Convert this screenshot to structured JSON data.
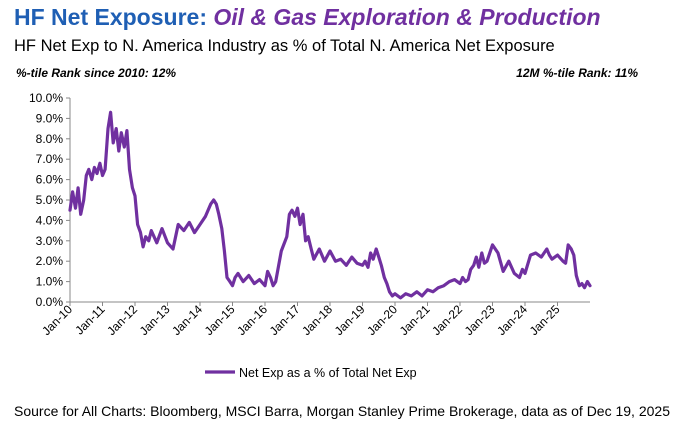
{
  "header": {
    "title_main": "HF Net Exposure: ",
    "title_sector": "Oil & Gas Exploration & Production",
    "subtitle": "HF Net Exp to N. America Industry as % of Total N. America Net Exposure",
    "stat_left": "%-tile Rank since 2010: 12%",
    "stat_right": "12M %-tile Rank: 11%"
  },
  "footer": {
    "source": "Source for All Charts: Bloomberg, MSCI Barra, Morgan Stanley Prime Brokerage, data as of Dec 19, 2025"
  },
  "colors": {
    "line": "#7030a0",
    "title_blue": "#1f5fb4",
    "title_purple": "#7030a0"
  },
  "chart_data": {
    "type": "line",
    "title": "HF Net Exp to N. America Industry as % of Total N. America Net Exposure",
    "xlabel": "",
    "ylabel": "",
    "ylim": [
      0,
      10
    ],
    "yticks": [
      "0.0%",
      "1.0%",
      "2.0%",
      "3.0%",
      "4.0%",
      "5.0%",
      "6.0%",
      "7.0%",
      "8.0%",
      "9.0%",
      "10.0%"
    ],
    "xlim": [
      2010.0,
      2026.0
    ],
    "xticks": [
      "Jan-10",
      "Jan-11",
      "Jan-12",
      "Jan-13",
      "Jan-14",
      "Jan-15",
      "Jan-16",
      "Jan-17",
      "Jan-18",
      "Jan-19",
      "Jan-20",
      "Jan-21",
      "Jan-22",
      "Jan-23",
      "Jan-24",
      "Jan-25"
    ],
    "legend": {
      "position": "bottom",
      "entries": [
        "Net Exp as a % of Total Net Exp"
      ]
    },
    "series": [
      {
        "name": "Net Exp as a % of Total Net Exp",
        "x": [
          2010.0,
          2010.08,
          2010.17,
          2010.25,
          2010.33,
          2010.42,
          2010.5,
          2010.58,
          2010.67,
          2010.75,
          2010.83,
          2010.92,
          2011.0,
          2011.08,
          2011.17,
          2011.25,
          2011.33,
          2011.42,
          2011.5,
          2011.58,
          2011.67,
          2011.75,
          2011.83,
          2011.92,
          2012.0,
          2012.08,
          2012.17,
          2012.25,
          2012.33,
          2012.42,
          2012.5,
          2012.67,
          2012.83,
          2013.0,
          2013.17,
          2013.33,
          2013.5,
          2013.67,
          2013.83,
          2014.0,
          2014.17,
          2014.33,
          2014.42,
          2014.5,
          2014.58,
          2014.67,
          2014.75,
          2014.83,
          2014.92,
          2015.0,
          2015.08,
          2015.17,
          2015.33,
          2015.5,
          2015.67,
          2015.83,
          2016.0,
          2016.08,
          2016.17,
          2016.25,
          2016.33,
          2016.5,
          2016.67,
          2016.75,
          2016.83,
          2016.92,
          2017.0,
          2017.08,
          2017.17,
          2017.25,
          2017.33,
          2017.42,
          2017.5,
          2017.67,
          2017.83,
          2018.0,
          2018.17,
          2018.33,
          2018.5,
          2018.67,
          2018.83,
          2019.0,
          2019.08,
          2019.17,
          2019.25,
          2019.33,
          2019.42,
          2019.5,
          2019.58,
          2019.67,
          2019.75,
          2019.83,
          2019.92,
          2020.0,
          2020.17,
          2020.33,
          2020.5,
          2020.67,
          2020.83,
          2021.0,
          2021.17,
          2021.33,
          2021.5,
          2021.67,
          2021.83,
          2022.0,
          2022.08,
          2022.17,
          2022.25,
          2022.33,
          2022.42,
          2022.5,
          2022.58,
          2022.67,
          2022.75,
          2022.83,
          2023.0,
          2023.17,
          2023.33,
          2023.5,
          2023.67,
          2023.83,
          2023.92,
          2024.0,
          2024.17,
          2024.33,
          2024.5,
          2024.67,
          2024.75,
          2024.83,
          2025.0,
          2025.17,
          2025.25,
          2025.33,
          2025.42,
          2025.5,
          2025.58,
          2025.67,
          2025.75,
          2025.83,
          2025.92,
          2026.0
        ],
        "values": [
          4.5,
          5.4,
          4.6,
          5.6,
          4.3,
          5.0,
          6.2,
          6.5,
          6.0,
          6.6,
          6.3,
          6.8,
          6.2,
          6.5,
          8.5,
          9.3,
          7.8,
          8.5,
          7.4,
          8.3,
          7.6,
          8.4,
          6.5,
          5.6,
          5.2,
          3.8,
          3.4,
          2.7,
          3.2,
          3.0,
          3.5,
          2.9,
          3.6,
          2.9,
          2.6,
          3.8,
          3.5,
          3.9,
          3.4,
          3.8,
          4.2,
          4.8,
          5.0,
          4.8,
          4.3,
          3.6,
          2.5,
          1.2,
          1.0,
          0.8,
          1.2,
          1.4,
          1.0,
          1.3,
          0.9,
          1.1,
          0.8,
          1.5,
          1.2,
          0.8,
          1.0,
          2.5,
          3.2,
          4.3,
          4.5,
          4.2,
          4.6,
          3.8,
          4.3,
          3.0,
          3.2,
          2.6,
          2.1,
          2.6,
          2.0,
          2.5,
          2.0,
          2.1,
          1.8,
          2.2,
          1.9,
          1.8,
          2.0,
          1.7,
          2.4,
          2.1,
          2.6,
          2.2,
          1.8,
          1.2,
          0.9,
          0.5,
          0.3,
          0.4,
          0.2,
          0.4,
          0.3,
          0.5,
          0.3,
          0.6,
          0.5,
          0.7,
          0.8,
          1.0,
          1.1,
          0.9,
          1.2,
          1.0,
          1.1,
          1.6,
          1.8,
          2.2,
          1.7,
          2.4,
          1.9,
          2.0,
          2.8,
          2.4,
          1.5,
          2.0,
          1.4,
          1.2,
          1.6,
          1.4,
          2.3,
          2.4,
          2.2,
          2.6,
          2.3,
          2.1,
          2.3,
          2.0,
          1.9,
          2.8,
          2.6,
          2.3,
          1.3,
          0.8,
          0.9,
          0.7,
          1.0,
          0.8
        ]
      }
    ]
  }
}
